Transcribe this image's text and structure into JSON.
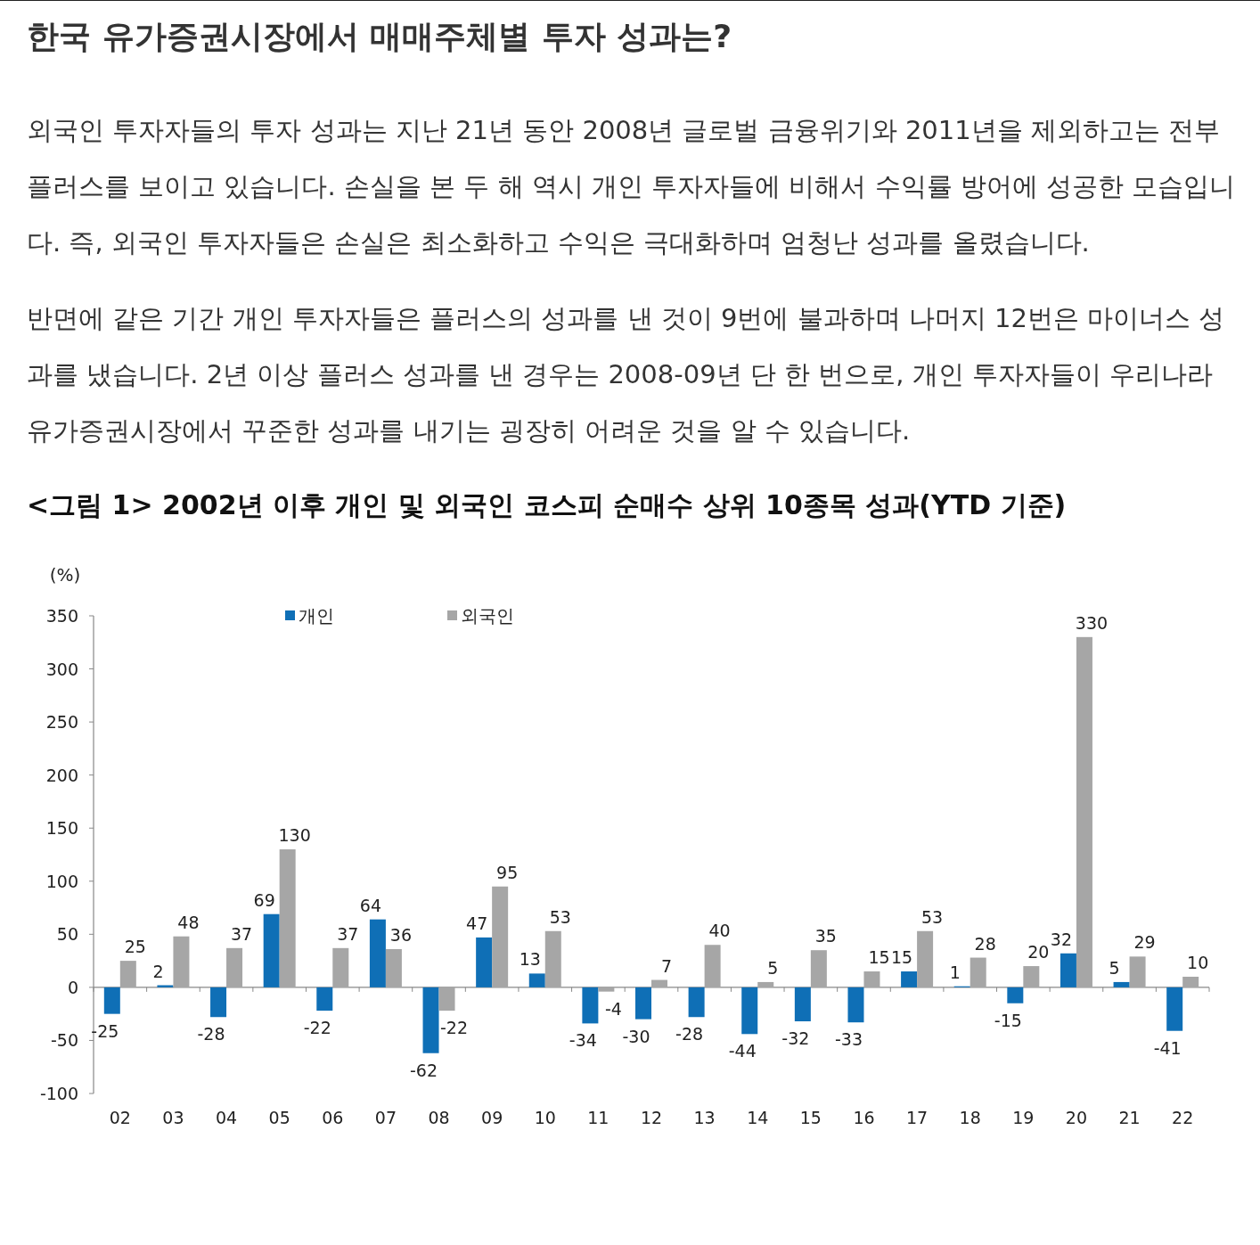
{
  "chart_data": {
    "type": "bar",
    "title": "한국 유가증권시장에서 매매주체별 투자 성과는?",
    "annotations": [
      "외국인 투자자들의 투자 성과는 지난 21년 동안 2008년 글로벌 금융위기와 2011년을 제외하고는 전부 플러스를 보이고 있습니다. 손실을 본 두 해 역시 개인 투자자들에 비해서 수익률 방어에 성공한 모습입니다. 즉, 외국인 투자자들은 손실은 최소화하고 수익은 극대화하며 엄청난 성과를 올렸습니다.",
      "반면에 같은 기간 개인 투자자들은 플러스의 성과를 낸 것이 9번에 불과하며 나머지 12번은 마이너스 성과를 냈습니다. 2년 이상 플러스 성과를 낸 경우는 2008-09년 단 한 번으로, 개인 투자자들이 우리나라 유가증권시장에서 꾸준한 성과를 내기는 굉장히 어려운 것을 알 수 있습니다."
    ],
    "subtitle": "<그림 1> 2002년 이후 개인 및 외국인 코스피 순매수 상위 10종목 성과(YTD 기준)",
    "ylabel": "(%)",
    "categories": [
      "02",
      "03",
      "04",
      "05",
      "06",
      "07",
      "08",
      "09",
      "10",
      "11",
      "12",
      "13",
      "14",
      "15",
      "16",
      "17",
      "18",
      "19",
      "20",
      "21",
      "22"
    ],
    "series": [
      {
        "name": "개인",
        "color": "#0f6fb6",
        "values": [
          -25,
          2,
          -28,
          69,
          -22,
          64,
          -62,
          47,
          13,
          -34,
          -30,
          -28,
          -44,
          -32,
          -33,
          15,
          1,
          -15,
          32,
          5,
          -41
        ]
      },
      {
        "name": "외국인",
        "color": "#a6a6a6",
        "values": [
          25,
          48,
          37,
          130,
          37,
          36,
          -22,
          95,
          53,
          -4,
          7,
          40,
          5,
          35,
          15,
          53,
          28,
          20,
          330,
          29,
          10
        ]
      }
    ],
    "ylim": [
      -100,
      350
    ],
    "yticks": [
      -100,
      -50,
      0,
      50,
      100,
      150,
      200,
      250,
      300,
      350
    ],
    "data_labels": true,
    "legend": "top"
  }
}
